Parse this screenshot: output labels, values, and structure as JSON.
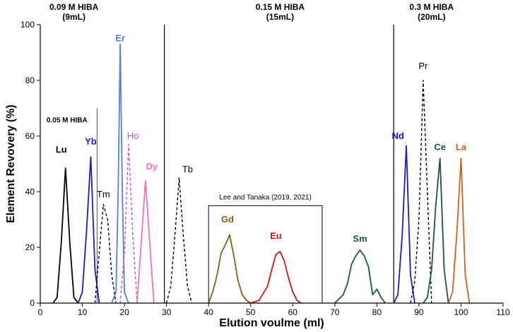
{
  "chart_data": {
    "type": "line",
    "title": "",
    "xlabel": "Elution voulme (ml)",
    "ylabel": "Element Revovery (%)",
    "xlim": [
      0,
      110
    ],
    "ylim": [
      0,
      100
    ],
    "x_ticks": [
      0,
      10,
      20,
      30,
      40,
      50,
      60,
      70,
      80,
      90,
      100,
      110
    ],
    "y_ticks": [
      0,
      20,
      40,
      60,
      80,
      100
    ],
    "regions": [
      {
        "label_line1": "0.09 M HIBA",
        "label_line2": "(9mL)",
        "center_x": 8
      },
      {
        "label_line1": "0.15 M HIBA",
        "label_line2": "(15mL)",
        "center_x": 57
      },
      {
        "label_line1": "0.3 M HIBA",
        "label_line2": "(20mL)",
        "center_x": 93
      }
    ],
    "divider_x": [
      29.5,
      84
    ],
    "sub_divider": {
      "x": 13.5,
      "y_top": 70,
      "label": "0.05 M HIBA",
      "label_x": 1.5,
      "label_y": 65
    },
    "reference_box": {
      "label": "Lee and Tanaka (2019, 2021)",
      "x0": 40,
      "x1": 67,
      "y_top": 35
    },
    "series": [
      {
        "name": "Lu",
        "color": "#000000",
        "dashed": false,
        "bold": true,
        "label_x": 5,
        "label_y": 54,
        "x": [
          3,
          4,
          5,
          6,
          7,
          8,
          9
        ],
        "y": [
          0,
          2,
          22,
          48.5,
          22,
          2,
          0
        ]
      },
      {
        "name": "Yb",
        "color": "#1a1acc",
        "dashed": false,
        "bold": true,
        "label_x": 12,
        "label_y": 57,
        "x": [
          9,
          10,
          11,
          12,
          13,
          14
        ],
        "y": [
          0,
          4,
          26,
          52.5,
          12,
          0
        ]
      },
      {
        "name": "Tm",
        "color": "#000000",
        "dashed": true,
        "bold": false,
        "label_x": 15,
        "label_y": 38,
        "x": [
          13,
          14,
          15,
          16,
          17,
          18
        ],
        "y": [
          0,
          18,
          35.5,
          30,
          10,
          0
        ]
      },
      {
        "name": "Er",
        "color": "#5080e0",
        "dashed": false,
        "bold": true,
        "label_x": 19,
        "label_y": 94,
        "x": [
          17,
          18,
          18.5,
          19,
          19.5,
          20,
          21
        ],
        "y": [
          0,
          4,
          40,
          93,
          40,
          4,
          0
        ]
      },
      {
        "name": "Ho",
        "color": "#c050c0",
        "dashed": true,
        "bold": false,
        "label_x": 22,
        "label_y": 59,
        "x": [
          19,
          20,
          20.5,
          21,
          22,
          23
        ],
        "y": [
          0,
          18,
          38,
          57,
          24,
          0
        ]
      },
      {
        "name": "Dy",
        "color": "#f070c0",
        "dashed": false,
        "bold": true,
        "label_x": 26.5,
        "label_y": 48,
        "x": [
          23,
          24,
          25,
          26,
          27
        ],
        "y": [
          0,
          22,
          44,
          22,
          0
        ]
      },
      {
        "name": "Tb",
        "color": "#000000",
        "dashed": true,
        "bold": false,
        "label_x": 35,
        "label_y": 47,
        "x": [
          30,
          31,
          32,
          33,
          34,
          35,
          36
        ],
        "y": [
          0,
          6,
          24,
          45,
          24,
          6,
          0
        ]
      },
      {
        "name": "Gd",
        "color": "#8b5a1e",
        "dashed": false,
        "bold": true,
        "label_x": 44.5,
        "label_y": 29,
        "x": [
          40,
          41,
          42,
          43,
          44,
          45,
          46,
          47,
          48,
          49,
          50
        ],
        "y": [
          0,
          4,
          10,
          18,
          21,
          24.5,
          17,
          8,
          3,
          1,
          0
        ]
      },
      {
        "name": "Eu",
        "color": "#e01010",
        "dashed": false,
        "bold": true,
        "label_x": 56,
        "label_y": 23,
        "x": [
          50,
          52,
          54,
          55,
          56,
          57,
          58,
          59,
          60,
          61,
          62
        ],
        "y": [
          0,
          1,
          6,
          12,
          17.5,
          18.5,
          15,
          9,
          4,
          1,
          0
        ]
      },
      {
        "name": "Sm",
        "color": "#1a5e2e",
        "dashed": false,
        "bold": true,
        "label_x": 76,
        "label_y": 22,
        "x": [
          70,
          72,
          73,
          74,
          75,
          76,
          77,
          78,
          79,
          80,
          81,
          82
        ],
        "y": [
          0,
          3,
          7,
          14,
          17,
          19,
          17,
          13,
          3,
          5,
          2,
          0
        ]
      },
      {
        "name": "Nd",
        "color": "#1a1acc",
        "dashed": false,
        "bold": true,
        "label_x": 85,
        "label_y": 59,
        "x": [
          84,
          85,
          86,
          87,
          88,
          89
        ],
        "y": [
          0,
          3,
          24,
          56.5,
          10,
          0
        ]
      },
      {
        "name": "Pr",
        "color": "#000000",
        "dashed": true,
        "bold": false,
        "label_x": 91,
        "label_y": 84,
        "x": [
          88,
          89,
          90,
          91,
          92,
          93
        ],
        "y": [
          0,
          8,
          30,
          80,
          40,
          0
        ]
      },
      {
        "name": "Ce",
        "color": "#1a5050",
        "dashed": false,
        "bold": true,
        "label_x": 95,
        "label_y": 55,
        "x": [
          91,
          92,
          93,
          94,
          95,
          96,
          97
        ],
        "y": [
          0,
          2,
          12,
          35,
          52,
          12,
          0
        ]
      },
      {
        "name": "La",
        "color": "#d06020",
        "dashed": false,
        "bold": true,
        "label_x": 100,
        "label_y": 55,
        "x": [
          97,
          98,
          99,
          100,
          101,
          102
        ],
        "y": [
          0,
          4,
          25,
          52,
          10,
          0
        ]
      }
    ]
  }
}
